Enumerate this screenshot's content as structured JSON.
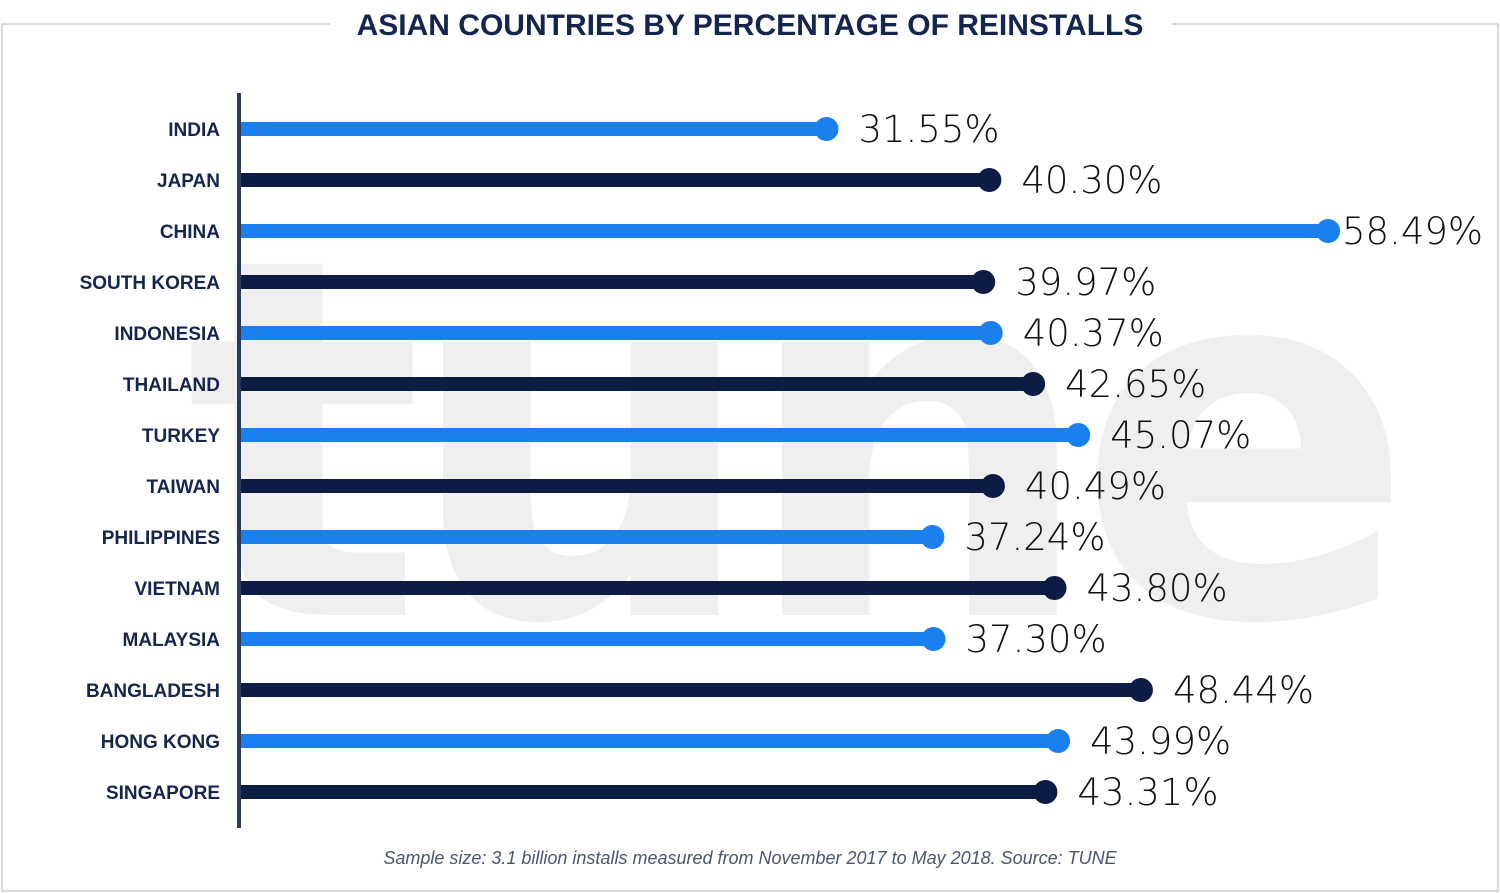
{
  "chart_data": {
    "type": "bar",
    "orientation": "horizontal",
    "title": "ASIAN COUNTRIES BY PERCENTAGE OF REINSTALLS",
    "categories": [
      "INDIA",
      "JAPAN",
      "CHINA",
      "SOUTH KOREA",
      "INDONESIA",
      "THAILAND",
      "TURKEY",
      "TAIWAN",
      "PHILIPPINES",
      "VIETNAM",
      "MALAYSIA",
      "BANGLADESH",
      "HONG KONG",
      "SINGAPORE"
    ],
    "values": [
      31.55,
      40.3,
      58.49,
      39.97,
      40.37,
      42.65,
      45.07,
      40.49,
      37.24,
      43.8,
      37.3,
      48.44,
      43.99,
      43.31
    ],
    "value_labels": [
      "31.55%",
      "40.30%",
      "58.49%",
      "39.97%",
      "40.37%",
      "42.65%",
      "45.07%",
      "40.49%",
      "37.24%",
      "43.80%",
      "37.30%",
      "48.44%",
      "43.99%",
      "43.31%"
    ],
    "unit": "%",
    "xlim": [
      0,
      60
    ],
    "grid": false,
    "legend": "none",
    "colors": {
      "light": "#1a80f0",
      "dark": "#0c1c45"
    },
    "color_pattern": "alternating light/dark by row, starting light"
  },
  "footnote": "Sample size: 3.1 billion installs measured from November 2017 to May 2018. Source: TUNE",
  "watermark": {
    "text": "tune",
    "icon": "tune-logo-watermark",
    "color": "#efefef"
  }
}
